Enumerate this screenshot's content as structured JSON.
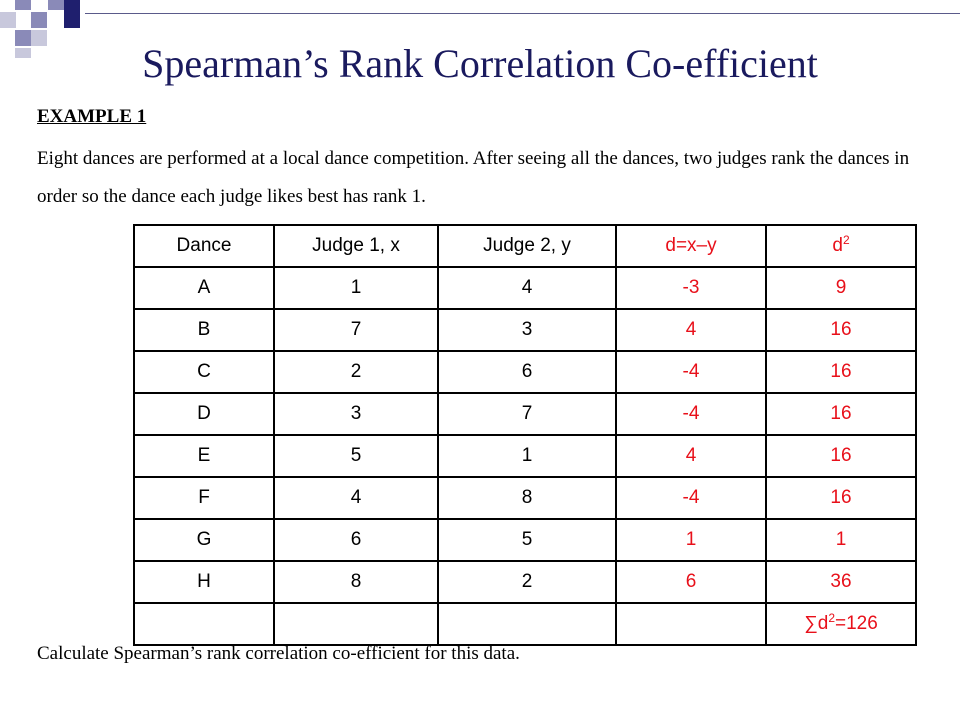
{
  "title": "Spearman’s Rank Correlation Co-efficient",
  "example_heading": "EXAMPLE 1",
  "description": "Eight dances are performed at a local dance competition.  After seeing all the dances, two judges rank the dances in order so the dance each judge likes best has rank 1.",
  "question": "Calculate Spearman’s rank correlation co-efficient for this data.",
  "colors": {
    "title": "#1a1a5e",
    "derived_columns": "#e8101a",
    "deco_dark": "#1f1f6e",
    "deco_mid": "#8a8ab8",
    "deco_light": "#c8c8dc"
  },
  "table": {
    "headers": {
      "dance": "Dance",
      "judge1": "Judge 1, x",
      "judge2": "Judge 2, y",
      "d": "d=x–y",
      "d2_base": "d",
      "d2_exp": "2"
    },
    "rows": [
      {
        "dance": "A",
        "x": "1",
        "y": "4",
        "d": "-3",
        "d2": "9"
      },
      {
        "dance": "B",
        "x": "7",
        "y": "3",
        "d": "4",
        "d2": "16"
      },
      {
        "dance": "C",
        "x": "2",
        "y": "6",
        "d": "-4",
        "d2": "16"
      },
      {
        "dance": "D",
        "x": "3",
        "y": "7",
        "d": "-4",
        "d2": "16"
      },
      {
        "dance": "E",
        "x": "5",
        "y": "1",
        "d": "4",
        "d2": "16"
      },
      {
        "dance": "F",
        "x": "4",
        "y": "8",
        "d": "-4",
        "d2": "16"
      },
      {
        "dance": "G",
        "x": "6",
        "y": "5",
        "d": "1",
        "d2": "1"
      },
      {
        "dance": "H",
        "x": "8",
        "y": "2",
        "d": "6",
        "d2": "36"
      }
    ],
    "total": {
      "prefix": "∑d",
      "exp": "2",
      "suffix": "=126"
    }
  }
}
